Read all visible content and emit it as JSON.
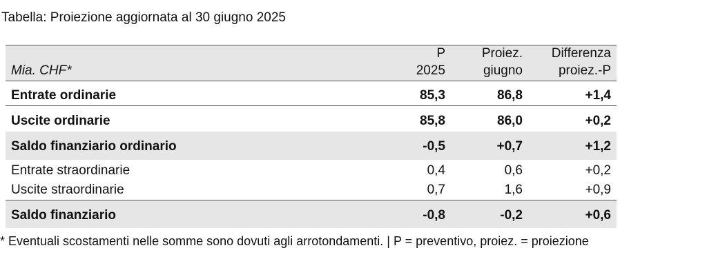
{
  "header": {
    "title": "Tabella: Proiezione aggiornata al 30 giugno 2025"
  },
  "table": {
    "corner": "Mia. CHF*",
    "columns": [
      [
        "P",
        "2025"
      ],
      [
        "Proiez.",
        "giugno"
      ],
      [
        "Differenza",
        "proiez.-P"
      ]
    ],
    "rows": [
      {
        "label": "Entrate ordinarie",
        "values": [
          "85,3",
          "86,8",
          "+1,4"
        ]
      },
      {
        "label": "Uscite ordinarie",
        "values": [
          "85,8",
          "86,0",
          "+0,2"
        ]
      },
      {
        "label": "Saldo finanziario ordinario",
        "values": [
          "-0,5",
          "+0,7",
          "+1,2"
        ]
      },
      {
        "label": "Entrate straordinarie",
        "values": [
          "0,4",
          "0,6",
          "+0,2"
        ]
      },
      {
        "label": "Uscite straordinarie",
        "values": [
          "0,7",
          "1,6",
          "+0,9"
        ]
      },
      {
        "label": "Saldo finanziario",
        "values": [
          "-0,8",
          "-0,2",
          "+0,6"
        ]
      }
    ]
  },
  "footnote": "* Eventuali scostamenti nelle somme sono dovuti agli arrotondamenti. | P = preventivo, proiez. = proiezione"
}
